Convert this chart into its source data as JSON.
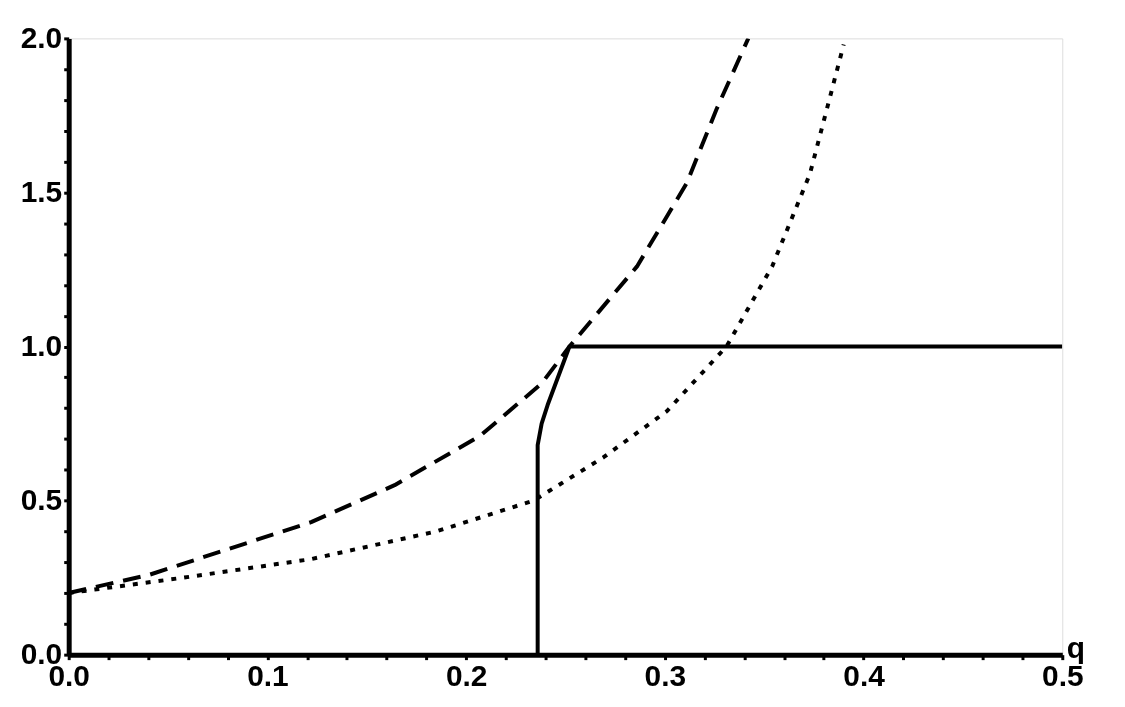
{
  "chart_data": {
    "type": "line",
    "xlabel": "q",
    "xlim": [
      0,
      0.5
    ],
    "ylim": [
      0,
      2.0
    ],
    "xticks": [
      {
        "value": 0,
        "label": "0.0"
      },
      {
        "value": 0.02,
        "label": null
      },
      {
        "value": 0.04,
        "label": null
      },
      {
        "value": 0.06,
        "label": null
      },
      {
        "value": 0.08,
        "label": null
      },
      {
        "value": 0.1,
        "label": "0.1"
      },
      {
        "value": 0.12,
        "label": null
      },
      {
        "value": 0.14,
        "label": null
      },
      {
        "value": 0.16,
        "label": null
      },
      {
        "value": 0.18,
        "label": null
      },
      {
        "value": 0.2,
        "label": "0.2"
      },
      {
        "value": 0.22,
        "label": null
      },
      {
        "value": 0.24,
        "label": null
      },
      {
        "value": 0.26,
        "label": null
      },
      {
        "value": 0.28,
        "label": null
      },
      {
        "value": 0.3,
        "label": "0.3"
      },
      {
        "value": 0.32,
        "label": null
      },
      {
        "value": 0.34,
        "label": null
      },
      {
        "value": 0.36,
        "label": null
      },
      {
        "value": 0.38,
        "label": null
      },
      {
        "value": 0.4,
        "label": "0.4"
      },
      {
        "value": 0.42,
        "label": null
      },
      {
        "value": 0.44,
        "label": null
      },
      {
        "value": 0.46,
        "label": null
      },
      {
        "value": 0.48,
        "label": null
      },
      {
        "value": 0.5,
        "label": "0.5"
      }
    ],
    "yticks": [
      {
        "value": 0,
        "label": "0.0"
      },
      {
        "value": 0.1,
        "label": null
      },
      {
        "value": 0.2,
        "label": null
      },
      {
        "value": 0.3,
        "label": null
      },
      {
        "value": 0.4,
        "label": null
      },
      {
        "value": 0.5,
        "label": "0.5"
      },
      {
        "value": 0.6,
        "label": null
      },
      {
        "value": 0.7,
        "label": null
      },
      {
        "value": 0.8,
        "label": null
      },
      {
        "value": 0.9,
        "label": null
      },
      {
        "value": 1.0,
        "label": "1.0"
      },
      {
        "value": 1.1,
        "label": null
      },
      {
        "value": 1.2,
        "label": null
      },
      {
        "value": 1.3,
        "label": null
      },
      {
        "value": 1.4,
        "label": null
      },
      {
        "value": 1.5,
        "label": "1.5"
      },
      {
        "value": 1.6,
        "label": null
      },
      {
        "value": 1.7,
        "label": null
      },
      {
        "value": 1.8,
        "label": null
      },
      {
        "value": 1.9,
        "label": null
      },
      {
        "value": 2.0,
        "label": "2.0"
      }
    ],
    "grid": false,
    "series": [
      {
        "color": "#000000",
        "line_style": "dashed",
        "x": [
          0,
          0.041,
          0.079,
          0.122,
          0.164,
          0.207,
          0.238,
          0.252,
          0.286,
          0.311,
          0.326,
          0.342
        ],
        "values": [
          0.2,
          0.26,
          0.34,
          0.43,
          0.55,
          0.71,
          0.88,
          1.0,
          1.26,
          1.53,
          1.77,
          2.0
        ]
      },
      {
        "color": "#000000",
        "line_style": "dotted",
        "x": [
          0,
          0.058,
          0.122,
          0.185,
          0.234,
          0.269,
          0.301,
          0.331,
          0.354,
          0.373,
          0.39
        ],
        "values": [
          0.2,
          0.25,
          0.31,
          0.4,
          0.5,
          0.64,
          0.79,
          1.0,
          1.26,
          1.56,
          1.98
        ]
      },
      {
        "color": "#000000",
        "line_style": "solid",
        "x": [
          0.236,
          0.236,
          0.238,
          0.241,
          0.252,
          0.5
        ],
        "values": [
          0,
          0.68,
          0.75,
          0.81,
          1.0,
          1.0
        ]
      }
    ]
  }
}
